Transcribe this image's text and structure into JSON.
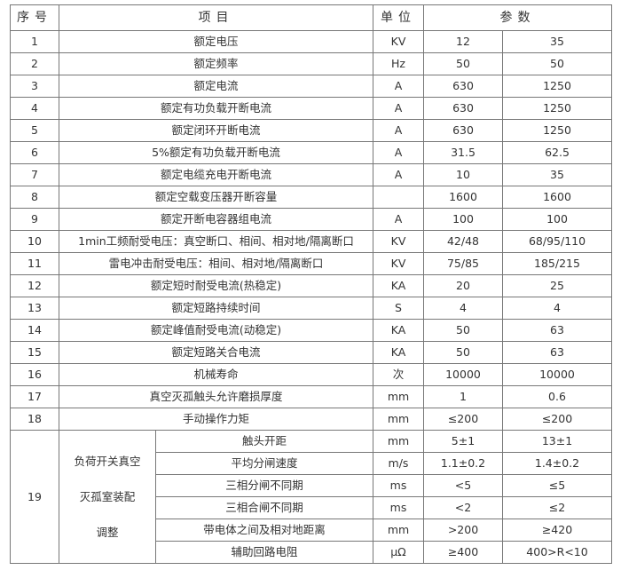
{
  "header": {
    "no": "序号",
    "item": "项目",
    "unit": "单位",
    "params": "参数"
  },
  "rows": [
    {
      "no": "1",
      "item": "额定电压",
      "unit": "KV",
      "v12": "12",
      "v35": "35"
    },
    {
      "no": "2",
      "item": "额定频率",
      "unit": "Hz",
      "v12": "50",
      "v35": "50"
    },
    {
      "no": "3",
      "item": "额定电流",
      "unit": "A",
      "v12": "630",
      "v35": "1250"
    },
    {
      "no": "4",
      "item": "额定有功负载开断电流",
      "unit": "A",
      "v12": "630",
      "v35": "1250"
    },
    {
      "no": "5",
      "item": "额定闭环开断电流",
      "unit": "A",
      "v12": "630",
      "v35": "1250"
    },
    {
      "no": "6",
      "item": "5%额定有功负载开断电流",
      "unit": "A",
      "v12": "31.5",
      "v35": "62.5"
    },
    {
      "no": "7",
      "item": "额定电缆充电开断电流",
      "unit": "A",
      "v12": "10",
      "v35": "35"
    },
    {
      "no": "8",
      "item": "额定空载变压器开断容量",
      "unit": "",
      "v12": "1600",
      "v35": "1600"
    },
    {
      "no": "9",
      "item": "额定开断电容器组电流",
      "unit": "A",
      "v12": "100",
      "v35": "100"
    },
    {
      "no": "10",
      "item": "1min工频耐受电压：真空断口、相间、相对地/隔离断口",
      "unit": "KV",
      "v12": "42/48",
      "v35": "68/95/110"
    },
    {
      "no": "11",
      "item": "雷电冲击耐受电压：相间、相对地/隔离断口",
      "unit": "KV",
      "v12": "75/85",
      "v35": "185/215"
    },
    {
      "no": "12",
      "item": "额定短时耐受电流(热稳定)",
      "unit": "KA",
      "v12": "20",
      "v35": "25"
    },
    {
      "no": "13",
      "item": "额定短路持续时间",
      "unit": "S",
      "v12": "4",
      "v35": "4"
    },
    {
      "no": "14",
      "item": "额定峰值耐受电流(动稳定)",
      "unit": "KA",
      "v12": "50",
      "v35": "63"
    },
    {
      "no": "15",
      "item": "额定短路关合电流",
      "unit": "KA",
      "v12": "50",
      "v35": "63"
    },
    {
      "no": "16",
      "item": "机械寿命",
      "unit": "次",
      "v12": "10000",
      "v35": "10000"
    },
    {
      "no": "17",
      "item": "真空灭孤触头允许磨损厚度",
      "unit": "mm",
      "v12": "1",
      "v35": "0.6"
    },
    {
      "no": "18",
      "item": "手动操作力矩",
      "unit": "mm",
      "v12": "≤200",
      "v35": "≤200"
    }
  ],
  "group": {
    "no": "19",
    "title_lines": [
      "负荷开关真空",
      "灭孤室装配",
      "调整"
    ],
    "rows": [
      {
        "item": "触头开距",
        "unit": "mm",
        "v12": "5±1",
        "v35": "13±1"
      },
      {
        "item": "平均分闸速度",
        "unit": "m/s",
        "v12": "1.1±0.2",
        "v35": "1.4±0.2"
      },
      {
        "item": "三相分闸不同期",
        "unit": "ms",
        "v12": "<5",
        "v35": "≤5"
      },
      {
        "item": "三相合闸不同期",
        "unit": "ms",
        "v12": "<2",
        "v35": "≤2"
      },
      {
        "item": "带电体之间及相对地距离",
        "unit": "mm",
        "v12": ">200",
        "v35": "≥420"
      },
      {
        "item": "辅助回路电阻",
        "unit": "μΩ",
        "v12": "≥400",
        "v35": "400>R<10"
      }
    ]
  }
}
